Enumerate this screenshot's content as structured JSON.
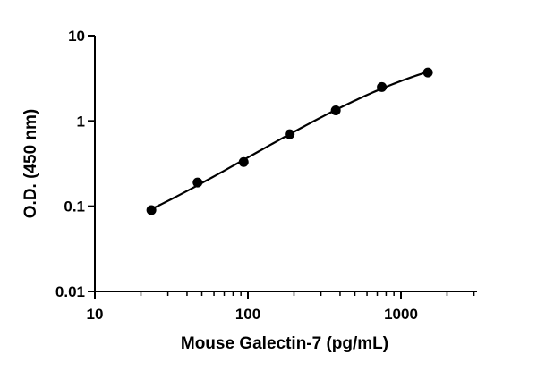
{
  "chart_data": {
    "type": "scatter",
    "title": "",
    "xlabel": "Mouse Galectin-7 (pg/mL)",
    "ylabel": "O.D. (450 nm)",
    "xscale": "log",
    "yscale": "log",
    "xlim": [
      10,
      3000
    ],
    "ylim": [
      0.01,
      10
    ],
    "grid": false,
    "legend": "none",
    "xticks": [
      10,
      100,
      1000
    ],
    "xtick_labels": [
      "10",
      "100",
      "1000"
    ],
    "yticks": [
      0.01,
      0.1,
      1,
      10
    ],
    "ytick_labels": [
      "0.01",
      "0.1",
      "1",
      "10"
    ],
    "series": [
      {
        "x": [
          23.4,
          46.9,
          93.8,
          187.5,
          375,
          750,
          1500
        ],
        "y": [
          0.09,
          0.19,
          0.33,
          0.7,
          1.33,
          2.5,
          3.7
        ],
        "marker": "circle",
        "fit_curve": true,
        "color": "#000000"
      }
    ]
  }
}
